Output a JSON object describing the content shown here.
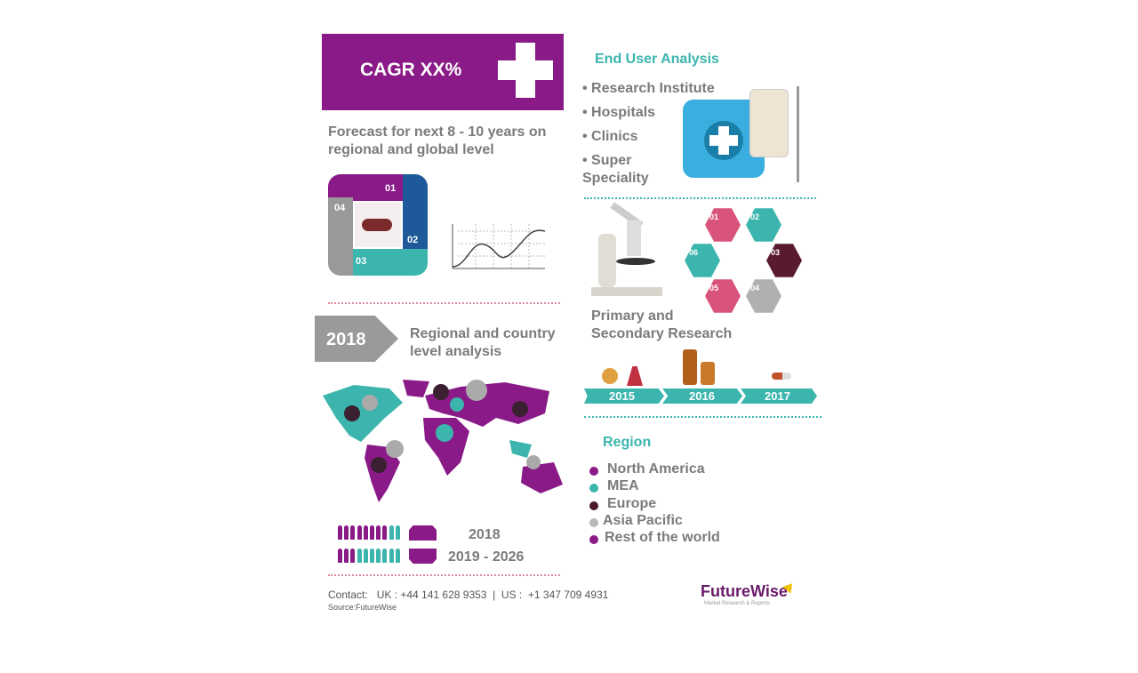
{
  "header": {
    "cagr": "CAGR XX%",
    "forecast": "Forecast for next 8 - 10  years on regional and global level"
  },
  "cycle": {
    "steps": [
      "01",
      "02",
      "03",
      "04"
    ]
  },
  "year_badge": "2018",
  "regional": "Regional and country level analysis",
  "people": [
    {
      "label": "2018",
      "purple": 8,
      "teal": 2
    },
    {
      "label": "2019 - 2026",
      "purple": 3,
      "teal": 7
    }
  ],
  "footer": {
    "contact": "Contact:   UK : +44 141 628 9353  |  US :  +1 347 709 4931",
    "source": "Source:FutureWise",
    "logo": "FutureWise",
    "logo_tagline": "Market Research & Reports"
  },
  "end_user": {
    "title": "End User Analysis",
    "items": [
      "Research Institute",
      "Hospitals",
      "Clinics",
      "Super Speciality"
    ]
  },
  "hexagons": [
    {
      "num": "01",
      "icon": "stethoscope-icon",
      "color": "#d9547a"
    },
    {
      "num": "02",
      "icon": "drops-icon",
      "color": "#3bb5ad"
    },
    {
      "num": "03",
      "icon": "cross-icon",
      "color": "#5a1a2e"
    },
    {
      "num": "04",
      "icon": "pill-icon",
      "color": "#b0b0b0"
    },
    {
      "num": "05",
      "icon": "heart-icon",
      "color": "#d9547a"
    },
    {
      "num": "06",
      "icon": "capsule-icon",
      "color": "#3bb5ad"
    }
  ],
  "research": "Primary and Secondary Research",
  "timeline": [
    "2015",
    "2016",
    "2017"
  ],
  "region": {
    "title": "Region",
    "items": [
      {
        "label": "North America",
        "color": "#8a1a88"
      },
      {
        "label": "MEA",
        "color": "#3bb5ad"
      },
      {
        "label": "Europe",
        "color": "#4a1a2a"
      },
      {
        "label": "Asia Pacific",
        "color": "#b8b8b8"
      },
      {
        "label": "Rest of the world",
        "color": "#8a1a88"
      }
    ]
  },
  "colors": {
    "purple": "#8a1a88",
    "teal": "#3bb5ad",
    "gray": "#7b7b7b"
  }
}
